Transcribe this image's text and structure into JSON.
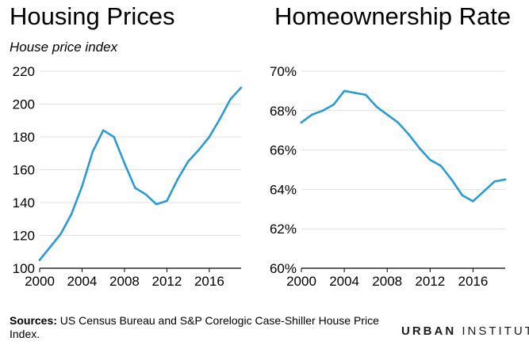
{
  "source": {
    "prefix": "Sources:",
    "text": " US Census Bureau and S&P Corelogic Case-Shiller House Price Index."
  },
  "logo": {
    "bold": "URBAN",
    "light": "INSTITUTE"
  },
  "colors": {
    "line": "#2a9bd4",
    "grid": "#e0e0e0",
    "axis": "#000000"
  },
  "chart_data": [
    {
      "type": "line",
      "title": "Housing Prices",
      "ylabel": "House price index",
      "xlabel": "",
      "xlim": [
        2000,
        2019
      ],
      "ylim": [
        100,
        220
      ],
      "x_ticks": [
        2000,
        2004,
        2008,
        2012,
        2016
      ],
      "y_ticks": [
        100,
        120,
        140,
        160,
        180,
        200,
        220
      ],
      "y_tick_labels": [
        "100",
        "120",
        "140",
        "160",
        "180",
        "200",
        "220"
      ],
      "grid": "horizontal",
      "x": [
        2000,
        2001,
        2002,
        2003,
        2004,
        2005,
        2006,
        2007,
        2008,
        2009,
        2010,
        2011,
        2012,
        2013,
        2014,
        2015,
        2016,
        2017,
        2018,
        2019
      ],
      "values": [
        105,
        113,
        121,
        133,
        150,
        171,
        184,
        180,
        164,
        149,
        145,
        139,
        141,
        154,
        165,
        172,
        180,
        191,
        203,
        210
      ]
    },
    {
      "type": "line",
      "title": "Homeownership Rate",
      "ylabel": "",
      "xlabel": "",
      "xlim": [
        2000,
        2019
      ],
      "ylim": [
        60,
        70
      ],
      "x_ticks": [
        2000,
        2004,
        2008,
        2012,
        2016
      ],
      "y_ticks": [
        60,
        62,
        64,
        66,
        68,
        70
      ],
      "y_tick_labels": [
        "60%",
        "62%",
        "64%",
        "66%",
        "68%",
        "70%"
      ],
      "grid": "horizontal",
      "x": [
        2000,
        2001,
        2002,
        2003,
        2004,
        2005,
        2006,
        2007,
        2008,
        2009,
        2010,
        2011,
        2012,
        2013,
        2014,
        2015,
        2016,
        2017,
        2018,
        2019
      ],
      "values": [
        67.4,
        67.8,
        68.0,
        68.3,
        69.0,
        68.9,
        68.8,
        68.2,
        67.8,
        67.4,
        66.8,
        66.1,
        65.5,
        65.2,
        64.5,
        63.7,
        63.4,
        63.9,
        64.4,
        64.5
      ]
    }
  ]
}
